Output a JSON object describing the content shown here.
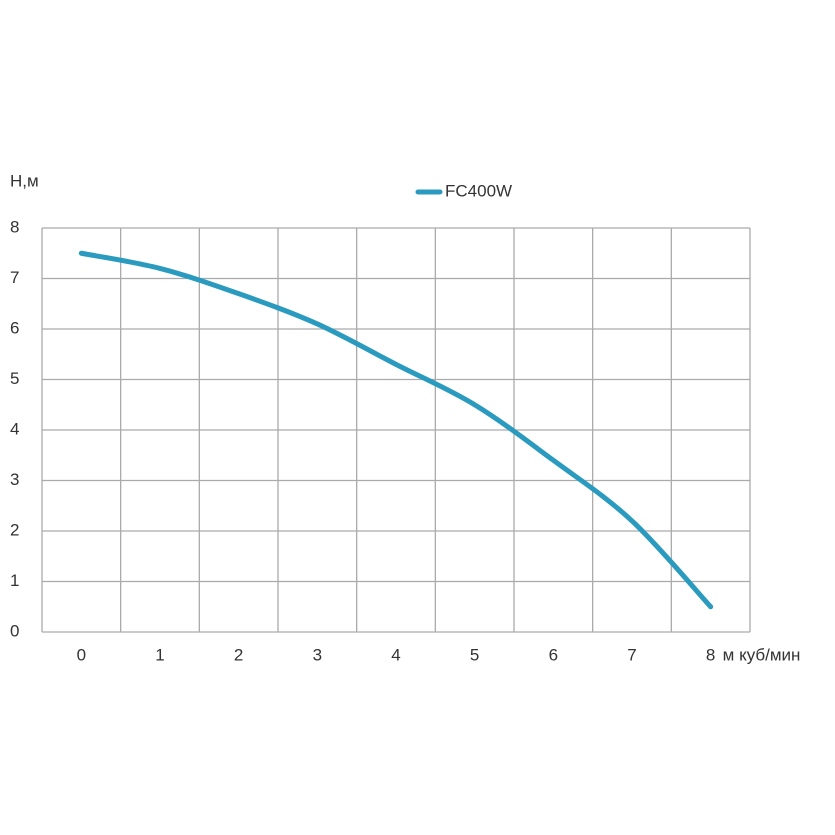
{
  "chart_data": {
    "type": "line",
    "y_label": "Н,м",
    "x_label": "м куб/мин",
    "x": [
      0,
      1,
      2,
      3,
      4,
      5,
      6,
      7,
      8
    ],
    "series": [
      {
        "name": "FC400W",
        "color": "#2a9bbf",
        "values": [
          7.5,
          7.2,
          6.7,
          6.1,
          5.3,
          4.5,
          3.4,
          2.2,
          0.5
        ]
      }
    ],
    "xlim": [
      -0.5,
      8.5
    ],
    "xticks": [
      0,
      1,
      2,
      3,
      4,
      5,
      6,
      7,
      8
    ],
    "ylim": [
      0,
      8
    ],
    "yticks": [
      0,
      1,
      2,
      3,
      4,
      5,
      6,
      7,
      8
    ],
    "grid": true
  }
}
